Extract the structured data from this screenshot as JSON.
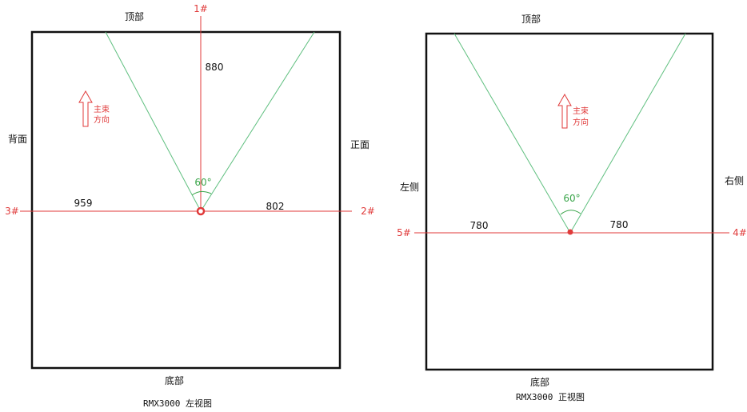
{
  "colors": {
    "frame": "#111111",
    "axis": "#e03a3a",
    "cone": "#5fbf7f",
    "angle_text": "#3aa54a"
  },
  "left_view": {
    "top_label": "顶部",
    "bottom_label": "底部",
    "back_label": "背面",
    "front_label": "正面",
    "mic_top": "1#",
    "mic_left": "3#",
    "mic_right": "2#",
    "dim_vertical": "880",
    "dim_left": "959",
    "dim_right": "802",
    "angle": "60°",
    "arrow_label_line1": "主束",
    "arrow_label_line2": "方向",
    "caption": "RMX3000 左视图"
  },
  "front_view": {
    "top_label": "顶部",
    "bottom_label": "底部",
    "left_label": "左侧",
    "right_label": "右侧",
    "mic_left": "5#",
    "mic_right": "4#",
    "dim_left": "780",
    "dim_right": "780",
    "angle": "60°",
    "arrow_label_line1": "主束",
    "arrow_label_line2": "方向",
    "caption": "RMX3000 正视图"
  }
}
